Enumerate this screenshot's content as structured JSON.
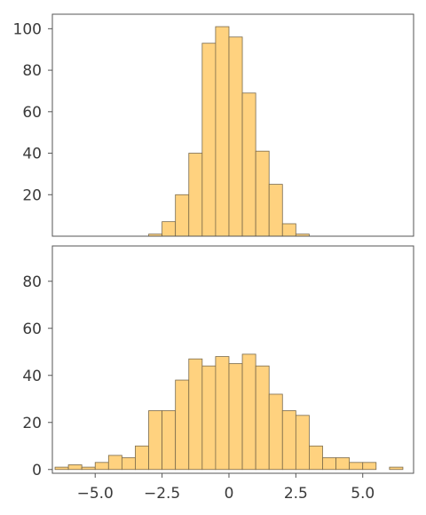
{
  "colors": {
    "bar_fill": "#ffd27f",
    "bar_edge": "#7a6a4a",
    "frame": "#555555",
    "text": "#3a3a3a"
  },
  "chart_data": [
    {
      "type": "histogram",
      "title": "",
      "xlabel": "",
      "ylabel": "",
      "xlim": [
        -6.6,
        6.9
      ],
      "ylim": [
        0,
        107
      ],
      "bin_width": 0.5,
      "bins_left": [
        -3,
        -2.5,
        -2,
        -1.5,
        -1,
        -0.5,
        0,
        0.5,
        1,
        1.5,
        2,
        2.5
      ],
      "values": [
        1,
        7,
        20,
        40,
        93,
        101,
        96,
        69,
        41,
        25,
        6,
        1
      ],
      "yticks": [
        20,
        40,
        60,
        80,
        100
      ],
      "ytick_labels": [
        "20",
        "40",
        "60",
        "80",
        "100"
      ],
      "xticks_visible": false,
      "grid": false
    },
    {
      "type": "histogram",
      "title": "",
      "xlabel": "",
      "ylabel": "",
      "xlim": [
        -6.6,
        6.9
      ],
      "ylim": [
        -1.6,
        95
      ],
      "bin_width": 0.5,
      "bins_left": [
        -6.5,
        -6,
        -5.5,
        -5,
        -4.5,
        -4,
        -3.5,
        -3,
        -2.5,
        -2,
        -1.5,
        -1,
        -0.5,
        0,
        0.5,
        1,
        1.5,
        2,
        2.5,
        3,
        3.5,
        4,
        4.5,
        5,
        5.5,
        6
      ],
      "values": [
        1,
        2,
        1,
        3,
        6,
        5,
        10,
        25,
        25,
        38,
        47,
        44,
        48,
        45,
        49,
        44,
        32,
        25,
        23,
        10,
        5,
        5,
        3,
        3,
        0,
        1
      ],
      "yticks": [
        0,
        20,
        40,
        60,
        80
      ],
      "ytick_labels": [
        "0",
        "20",
        "40",
        "60",
        "80"
      ],
      "xticks": [
        -5,
        -2.5,
        0,
        2.5,
        5
      ],
      "xtick_labels": [
        "−5.0",
        "−2.5",
        "0",
        "2.5",
        "5.0"
      ],
      "grid": false
    }
  ]
}
